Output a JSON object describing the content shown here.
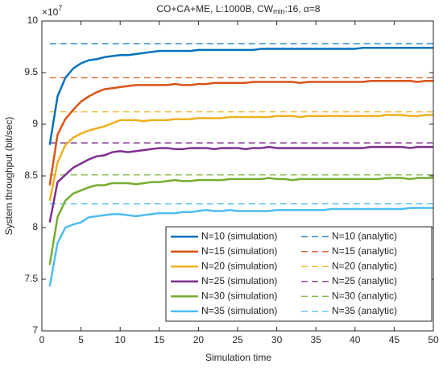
{
  "chart_data": {
    "type": "line",
    "title": [
      "CO+CA+ME, L:1000B, CW",
      "min",
      ":16, α=8"
    ],
    "y_multiplier": [
      "×10",
      "7"
    ],
    "xlabel": "Simulation time",
    "ylabel": "System throughput (bit/sec)",
    "xlim": [
      0,
      50
    ],
    "xticks": [
      0,
      5,
      10,
      15,
      20,
      25,
      30,
      35,
      40,
      45,
      50
    ],
    "ylim": [
      7,
      10
    ],
    "yticks": [
      7,
      7.5,
      8,
      8.5,
      9,
      9.5,
      10
    ],
    "grid": false,
    "legend": "lower right",
    "x": [
      1,
      2,
      3,
      4,
      5,
      6,
      7,
      8,
      9,
      10,
      11,
      12,
      13,
      14,
      15,
      16,
      17,
      18,
      19,
      20,
      21,
      22,
      23,
      24,
      25,
      26,
      27,
      28,
      29,
      30,
      31,
      32,
      33,
      34,
      35,
      36,
      37,
      38,
      39,
      40,
      41,
      42,
      43,
      44,
      45,
      46,
      47,
      48,
      49,
      50
    ],
    "series": [
      {
        "name": "N=10 (simulation)",
        "color": "#0072bd",
        "values": [
          8.8,
          9.27,
          9.45,
          9.54,
          9.59,
          9.62,
          9.63,
          9.65,
          9.66,
          9.67,
          9.67,
          9.68,
          9.69,
          9.7,
          9.71,
          9.71,
          9.71,
          9.71,
          9.71,
          9.72,
          9.72,
          9.72,
          9.72,
          9.72,
          9.72,
          9.72,
          9.72,
          9.73,
          9.73,
          9.73,
          9.73,
          9.73,
          9.73,
          9.73,
          9.73,
          9.73,
          9.73,
          9.73,
          9.73,
          9.73,
          9.74,
          9.74,
          9.74,
          9.74,
          9.74,
          9.74,
          9.74,
          9.74,
          9.74,
          9.74
        ]
      },
      {
        "name": "N=15 (simulation)",
        "color": "#d95319",
        "values": [
          8.41,
          8.9,
          9.05,
          9.14,
          9.22,
          9.27,
          9.31,
          9.34,
          9.35,
          9.36,
          9.37,
          9.38,
          9.38,
          9.38,
          9.38,
          9.38,
          9.39,
          9.38,
          9.38,
          9.39,
          9.39,
          9.4,
          9.4,
          9.4,
          9.4,
          9.4,
          9.41,
          9.41,
          9.41,
          9.41,
          9.41,
          9.41,
          9.4,
          9.41,
          9.41,
          9.41,
          9.41,
          9.41,
          9.41,
          9.41,
          9.41,
          9.42,
          9.42,
          9.42,
          9.42,
          9.42,
          9.42,
          9.41,
          9.42,
          9.42
        ]
      },
      {
        "name": "N=20 (simulation)",
        "color": "#edb120",
        "values": [
          8.26,
          8.63,
          8.8,
          8.87,
          8.91,
          8.94,
          8.96,
          8.98,
          9.01,
          9.04,
          9.04,
          9.04,
          9.03,
          9.04,
          9.04,
          9.04,
          9.05,
          9.05,
          9.05,
          9.06,
          9.06,
          9.06,
          9.06,
          9.07,
          9.07,
          9.07,
          9.07,
          9.07,
          9.07,
          9.08,
          9.08,
          9.08,
          9.07,
          9.08,
          9.08,
          9.08,
          9.08,
          9.08,
          9.08,
          9.08,
          9.08,
          9.08,
          9.08,
          9.09,
          9.09,
          9.09,
          9.08,
          9.08,
          9.09,
          9.09
        ]
      },
      {
        "name": "N=25 (simulation)",
        "color": "#7e2f8e",
        "values": [
          8.05,
          8.44,
          8.51,
          8.58,
          8.62,
          8.66,
          8.69,
          8.7,
          8.73,
          8.74,
          8.73,
          8.74,
          8.75,
          8.76,
          8.77,
          8.77,
          8.76,
          8.76,
          8.77,
          8.77,
          8.77,
          8.76,
          8.77,
          8.77,
          8.77,
          8.76,
          8.77,
          8.77,
          8.78,
          8.77,
          8.77,
          8.77,
          8.77,
          8.77,
          8.77,
          8.77,
          8.77,
          8.77,
          8.77,
          8.77,
          8.77,
          8.78,
          8.78,
          8.78,
          8.78,
          8.78,
          8.77,
          8.78,
          8.78,
          8.78
        ]
      },
      {
        "name": "N=30 (simulation)",
        "color": "#77ac30",
        "values": [
          7.64,
          8.1,
          8.26,
          8.33,
          8.36,
          8.39,
          8.41,
          8.41,
          8.43,
          8.43,
          8.43,
          8.42,
          8.43,
          8.44,
          8.44,
          8.45,
          8.46,
          8.45,
          8.45,
          8.46,
          8.46,
          8.46,
          8.46,
          8.47,
          8.47,
          8.47,
          8.47,
          8.47,
          8.48,
          8.47,
          8.47,
          8.46,
          8.47,
          8.47,
          8.47,
          8.47,
          8.47,
          8.47,
          8.47,
          8.47,
          8.47,
          8.47,
          8.47,
          8.48,
          8.48,
          8.48,
          8.47,
          8.48,
          8.48,
          8.48
        ]
      },
      {
        "name": "N=35 (simulation)",
        "color": "#4dbeee",
        "values": [
          7.43,
          7.85,
          8.0,
          8.03,
          8.05,
          8.1,
          8.11,
          8.12,
          8.13,
          8.13,
          8.12,
          8.11,
          8.12,
          8.13,
          8.14,
          8.14,
          8.14,
          8.15,
          8.15,
          8.16,
          8.17,
          8.16,
          8.16,
          8.17,
          8.16,
          8.16,
          8.16,
          8.16,
          8.16,
          8.17,
          8.17,
          8.17,
          8.17,
          8.17,
          8.17,
          8.17,
          8.18,
          8.18,
          8.18,
          8.18,
          8.18,
          8.18,
          8.18,
          8.18,
          8.18,
          8.18,
          8.19,
          8.19,
          8.19,
          8.19
        ]
      }
    ],
    "reference_lines": [
      {
        "name": "N=10 (analytic)",
        "color": "#0072bd",
        "value": 9.78
      },
      {
        "name": "N=15 (analytic)",
        "color": "#d95319",
        "value": 9.45
      },
      {
        "name": "N=20 (analytic)",
        "color": "#edb120",
        "value": 9.12
      },
      {
        "name": "N=25 (analytic)",
        "color": "#7e2f8e",
        "value": 8.82
      },
      {
        "name": "N=30 (analytic)",
        "color": "#77ac30",
        "value": 8.51
      },
      {
        "name": "N=35 (analytic)",
        "color": "#4dbeee",
        "value": 8.23
      }
    ]
  }
}
